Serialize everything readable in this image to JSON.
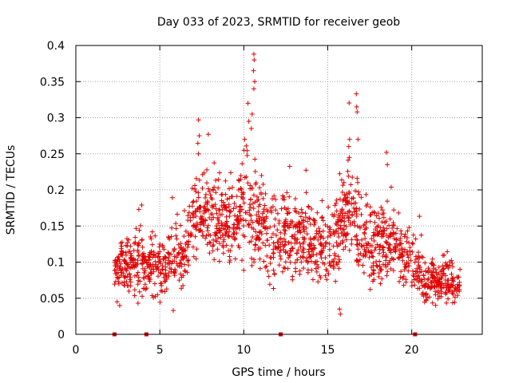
{
  "chart_data": {
    "type": "scatter",
    "title": "Day 033 of 2023, SRMTID for receiver geob",
    "xlabel": "GPS time / hours",
    "ylabel": "SRMTID / TECUs",
    "xlim": [
      0,
      24.2
    ],
    "ylim": [
      0,
      0.4
    ],
    "xticks": [
      0,
      5,
      10,
      15,
      20
    ],
    "yticks": [
      0,
      0.05,
      0.1,
      0.15,
      0.2,
      0.25,
      0.3,
      0.35,
      0.4
    ],
    "xtick_labels": [
      "0",
      "5",
      "10",
      "15",
      "20"
    ],
    "ytick_labels": [
      "0",
      "0.05",
      "0.1",
      "0.15",
      "0.2",
      "0.25",
      "0.3",
      "0.35",
      "0.4"
    ],
    "grid": true,
    "marker": "+",
    "color": "#e00000",
    "envelope": [
      {
        "x": 2.3,
        "center": 0.085,
        "spread": 0.03
      },
      {
        "x": 3.0,
        "center": 0.09,
        "spread": 0.035
      },
      {
        "x": 3.8,
        "center": 0.1,
        "spread": 0.04
      },
      {
        "x": 4.2,
        "center": 0.09,
        "spread": 0.035
      },
      {
        "x": 5.0,
        "center": 0.09,
        "spread": 0.04
      },
      {
        "x": 5.8,
        "center": 0.1,
        "spread": 0.04
      },
      {
        "x": 6.5,
        "center": 0.11,
        "spread": 0.04
      },
      {
        "x": 7.2,
        "center": 0.17,
        "spread": 0.05
      },
      {
        "x": 8.0,
        "center": 0.16,
        "spread": 0.05
      },
      {
        "x": 8.8,
        "center": 0.15,
        "spread": 0.05
      },
      {
        "x": 9.5,
        "center": 0.15,
        "spread": 0.05
      },
      {
        "x": 10.2,
        "center": 0.18,
        "spread": 0.07
      },
      {
        "x": 10.8,
        "center": 0.15,
        "spread": 0.07
      },
      {
        "x": 11.5,
        "center": 0.13,
        "spread": 0.05
      },
      {
        "x": 12.5,
        "center": 0.14,
        "spread": 0.05
      },
      {
        "x": 13.5,
        "center": 0.14,
        "spread": 0.05
      },
      {
        "x": 14.5,
        "center": 0.12,
        "spread": 0.05
      },
      {
        "x": 15.5,
        "center": 0.14,
        "spread": 0.05
      },
      {
        "x": 16.3,
        "center": 0.17,
        "spread": 0.06
      },
      {
        "x": 17.0,
        "center": 0.13,
        "spread": 0.05
      },
      {
        "x": 17.8,
        "center": 0.12,
        "spread": 0.045
      },
      {
        "x": 18.5,
        "center": 0.13,
        "spread": 0.05
      },
      {
        "x": 19.3,
        "center": 0.11,
        "spread": 0.045
      },
      {
        "x": 20.1,
        "center": 0.1,
        "spread": 0.04
      },
      {
        "x": 20.8,
        "center": 0.075,
        "spread": 0.03
      },
      {
        "x": 21.5,
        "center": 0.07,
        "spread": 0.025
      },
      {
        "x": 22.2,
        "center": 0.08,
        "spread": 0.03
      },
      {
        "x": 22.9,
        "center": 0.07,
        "spread": 0.025
      }
    ],
    "peaks": [
      {
        "x": 7.3,
        "y": 0.297
      },
      {
        "x": 7.35,
        "y": 0.275
      },
      {
        "x": 7.3,
        "y": 0.25
      },
      {
        "x": 10.05,
        "y": 0.27
      },
      {
        "x": 10.25,
        "y": 0.32
      },
      {
        "x": 10.3,
        "y": 0.295
      },
      {
        "x": 10.6,
        "y": 0.388
      },
      {
        "x": 10.62,
        "y": 0.38
      },
      {
        "x": 10.58,
        "y": 0.365
      },
      {
        "x": 10.65,
        "y": 0.35
      },
      {
        "x": 10.6,
        "y": 0.34
      },
      {
        "x": 10.5,
        "y": 0.305
      },
      {
        "x": 10.45,
        "y": 0.285
      },
      {
        "x": 16.7,
        "y": 0.333
      },
      {
        "x": 16.72,
        "y": 0.315
      },
      {
        "x": 16.75,
        "y": 0.308
      },
      {
        "x": 16.3,
        "y": 0.27
      },
      {
        "x": 16.25,
        "y": 0.26
      },
      {
        "x": 16.8,
        "y": 0.27
      },
      {
        "x": 18.5,
        "y": 0.252
      },
      {
        "x": 18.55,
        "y": 0.235
      },
      {
        "x": 3.75,
        "y": 0.173
      },
      {
        "x": 15.7,
        "y": 0.035
      },
      {
        "x": 15.75,
        "y": 0.028
      },
      {
        "x": 5.8,
        "y": 0.033
      }
    ],
    "gap_markers_x": [
      2.3,
      4.2,
      12.2,
      20.2
    ]
  }
}
